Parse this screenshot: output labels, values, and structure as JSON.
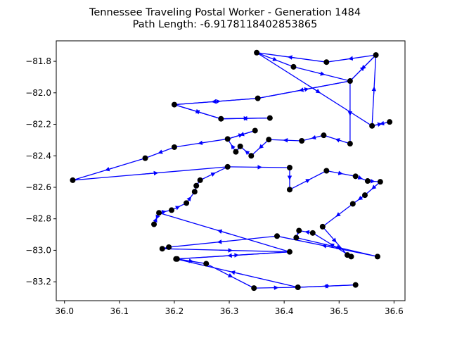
{
  "chart_data": {
    "type": "line",
    "title": "Tennessee Traveling Postal Worker - Generation 1484",
    "subtitle": "Path Length: -6.9178118402853865",
    "xlabel": "",
    "ylabel": "",
    "xlim": [
      35.985,
      36.62
    ],
    "ylim": [
      -83.32,
      -81.67
    ],
    "xticks": [
      36.0,
      36.1,
      36.2,
      36.3,
      36.4,
      36.5,
      36.6
    ],
    "xtick_labels": [
      "36.0",
      "36.1",
      "36.2",
      "36.3",
      "36.4",
      "36.5",
      "36.6"
    ],
    "yticks": [
      -83.2,
      -83.0,
      -82.8,
      -82.6,
      -82.4,
      -82.2,
      -82.0,
      -81.8
    ],
    "ytick_labels": [
      "−83.2",
      "−83.0",
      "−82.8",
      "−82.6",
      "−82.4",
      "−82.2",
      "−82.0",
      "−81.8"
    ],
    "grid": false,
    "path_color": "#0000ff",
    "point_color": "#000000",
    "path": [
      [
        36.35,
        -81.745
      ],
      [
        36.417,
        -81.835
      ],
      [
        36.52,
        -81.925
      ],
      [
        36.567,
        -81.76
      ],
      [
        36.477,
        -81.805
      ],
      [
        36.35,
        -81.745
      ],
      [
        36.56,
        -82.21
      ],
      [
        36.592,
        -82.185
      ],
      [
        36.56,
        -82.21
      ],
      [
        36.567,
        -81.76
      ],
      [
        36.52,
        -81.925
      ],
      [
        36.352,
        -82.035
      ],
      [
        36.2,
        -82.075
      ],
      [
        36.285,
        -82.165
      ],
      [
        36.374,
        -82.16
      ],
      [
        36.285,
        -82.165
      ],
      [
        36.2,
        -82.075
      ],
      [
        36.352,
        -82.035
      ],
      [
        36.52,
        -81.925
      ],
      [
        36.52,
        -82.323
      ],
      [
        36.472,
        -82.27
      ],
      [
        36.432,
        -82.305
      ],
      [
        36.372,
        -82.297
      ],
      [
        36.34,
        -82.4
      ],
      [
        36.32,
        -82.34
      ],
      [
        36.312,
        -82.375
      ],
      [
        36.297,
        -82.293
      ],
      [
        36.347,
        -82.24
      ],
      [
        36.297,
        -82.293
      ],
      [
        36.2,
        -82.345
      ],
      [
        36.147,
        -82.415
      ],
      [
        36.015,
        -82.555
      ],
      [
        36.297,
        -82.47
      ],
      [
        36.41,
        -82.475
      ],
      [
        36.41,
        -82.615
      ],
      [
        36.477,
        -82.495
      ],
      [
        36.53,
        -82.53
      ],
      [
        36.552,
        -82.56
      ],
      [
        36.575,
        -82.565
      ],
      [
        36.547,
        -82.65
      ],
      [
        36.525,
        -82.705
      ],
      [
        36.47,
        -82.85
      ],
      [
        36.515,
        -83.03
      ],
      [
        36.522,
        -83.04
      ],
      [
        36.452,
        -82.89
      ],
      [
        36.427,
        -82.875
      ],
      [
        36.422,
        -82.92
      ],
      [
        36.57,
        -83.04
      ],
      [
        36.387,
        -82.91
      ],
      [
        36.19,
        -82.98
      ],
      [
        36.178,
        -82.99
      ],
      [
        36.41,
        -83.01
      ],
      [
        36.205,
        -83.055
      ],
      [
        36.258,
        -83.085
      ],
      [
        36.345,
        -83.24
      ],
      [
        36.425,
        -83.235
      ],
      [
        36.53,
        -83.22
      ],
      [
        36.425,
        -83.235
      ],
      [
        36.203,
        -83.055
      ],
      [
        36.41,
        -83.01
      ],
      [
        36.172,
        -82.762
      ],
      [
        36.163,
        -82.835
      ],
      [
        36.172,
        -82.762
      ],
      [
        36.195,
        -82.745
      ],
      [
        36.222,
        -82.7
      ],
      [
        36.237,
        -82.628
      ],
      [
        36.24,
        -82.59
      ],
      [
        36.247,
        -82.555
      ],
      [
        36.297,
        -82.47
      ]
    ]
  }
}
